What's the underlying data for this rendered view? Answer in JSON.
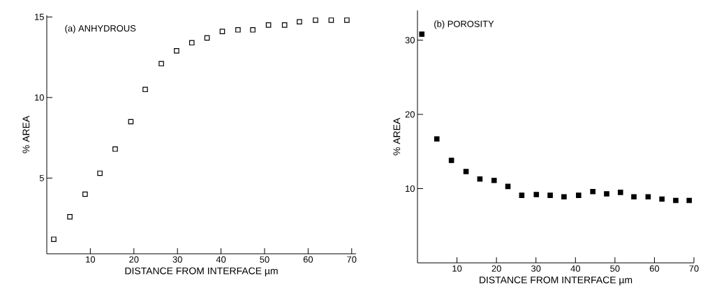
{
  "chart_data": [
    {
      "type": "scatter",
      "xlabel": "DISTANCE FROM INTERFACE µm",
      "ylabel": "% AREA",
      "annotations": [
        "(a) ANHYDROUS"
      ],
      "x": [
        1.6,
        5.3,
        8.8,
        12.2,
        15.7,
        19.3,
        22.6,
        26.3,
        29.8,
        33.3,
        36.8,
        40.3,
        43.9,
        47.3,
        50.9,
        54.6,
        58.0,
        61.7,
        65.3,
        68.9
      ],
      "series": [
        {
          "color": "#000000",
          "values": [
            1.2,
            2.6,
            4.0,
            5.3,
            6.8,
            8.5,
            10.5,
            12.1,
            12.9,
            13.4,
            13.7,
            14.1,
            14.2,
            14.2,
            14.5,
            14.5,
            14.7,
            14.8,
            14.8,
            14.8
          ]
        }
      ],
      "xlim": [
        0,
        71
      ],
      "ylim": [
        0.3,
        15.1
      ],
      "xticks": [
        10,
        20,
        30,
        40,
        50,
        60,
        70
      ],
      "yticks": [
        5,
        10,
        15
      ],
      "marker": "square"
    },
    {
      "type": "scatter",
      "xlabel": "DISTANCE FROM INTERFACE µm",
      "ylabel": "% AREA",
      "annotations": [
        "(b) POROSITY"
      ],
      "x": [
        1.1,
        4.9,
        8.6,
        12.3,
        15.8,
        19.4,
        22.9,
        26.4,
        30.1,
        33.6,
        37.1,
        40.8,
        44.4,
        47.9,
        51.4,
        54.8,
        58.4,
        61.9,
        65.4,
        68.8
      ],
      "series": [
        {
          "color": "#000000",
          "values": [
            30.8,
            16.7,
            13.8,
            12.3,
            11.3,
            11.1,
            10.3,
            9.1,
            9.2,
            9.1,
            8.9,
            9.1,
            9.6,
            9.3,
            9.5,
            8.9,
            8.9,
            8.6,
            8.4,
            8.4
          ]
        }
      ],
      "xlim": [
        0,
        70
      ],
      "ylim": [
        0,
        34
      ],
      "xticks": [
        10,
        20,
        30,
        40,
        50,
        60,
        70
      ],
      "yticks": [
        10,
        20,
        30
      ],
      "marker": "square"
    }
  ]
}
